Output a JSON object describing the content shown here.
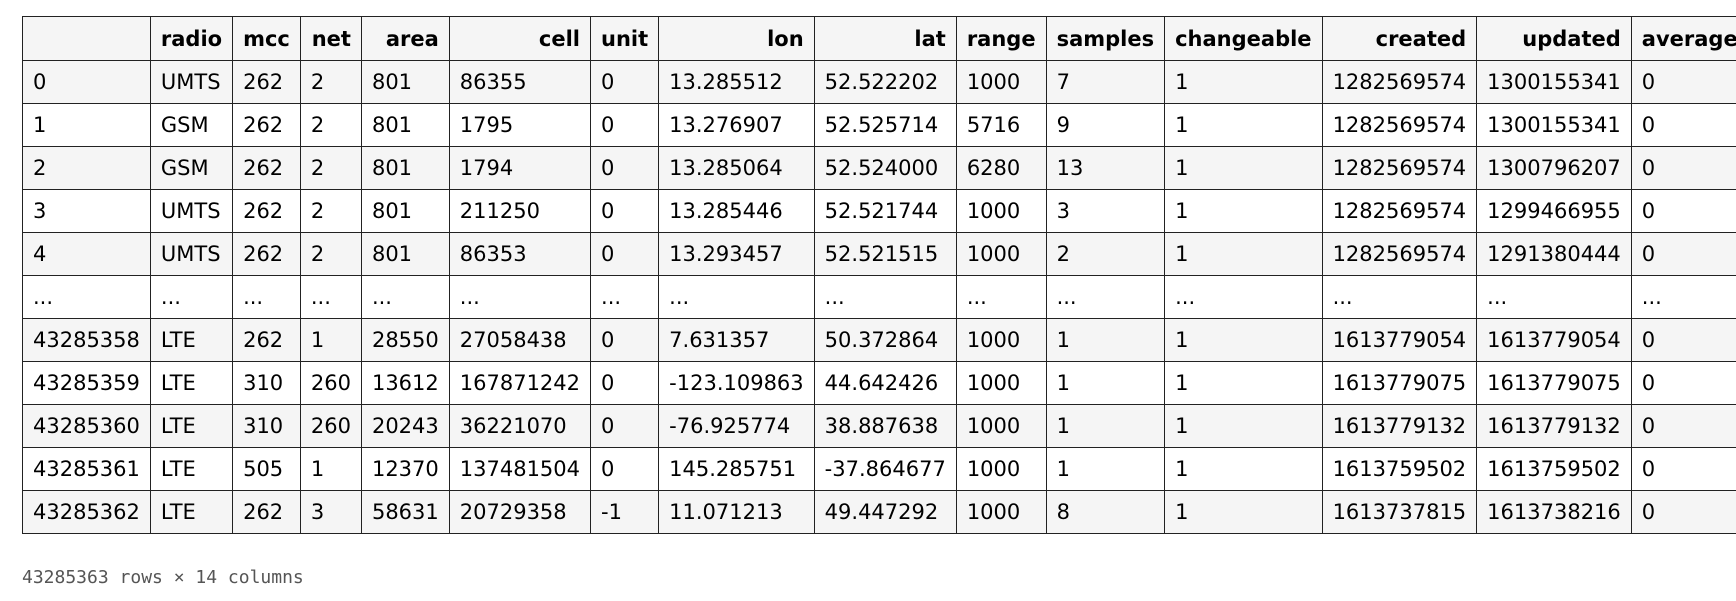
{
  "table": {
    "columns": [
      "",
      "radio",
      "mcc",
      "net",
      "area",
      "cell",
      "unit",
      "lon",
      "lat",
      "range",
      "samples",
      "changeable",
      "created",
      "updated",
      "averageSignal"
    ],
    "rows": [
      [
        "0",
        "UMTS",
        "262",
        "2",
        "801",
        "86355",
        "0",
        "13.285512",
        "52.522202",
        "1000",
        "7",
        "1",
        "1282569574",
        "1300155341",
        "0"
      ],
      [
        "1",
        "GSM",
        "262",
        "2",
        "801",
        "1795",
        "0",
        "13.276907",
        "52.525714",
        "5716",
        "9",
        "1",
        "1282569574",
        "1300155341",
        "0"
      ],
      [
        "2",
        "GSM",
        "262",
        "2",
        "801",
        "1794",
        "0",
        "13.285064",
        "52.524000",
        "6280",
        "13",
        "1",
        "1282569574",
        "1300796207",
        "0"
      ],
      [
        "3",
        "UMTS",
        "262",
        "2",
        "801",
        "211250",
        "0",
        "13.285446",
        "52.521744",
        "1000",
        "3",
        "1",
        "1282569574",
        "1299466955",
        "0"
      ],
      [
        "4",
        "UMTS",
        "262",
        "2",
        "801",
        "86353",
        "0",
        "13.293457",
        "52.521515",
        "1000",
        "2",
        "1",
        "1282569574",
        "1291380444",
        "0"
      ],
      [
        "...",
        "...",
        "...",
        "...",
        "...",
        "...",
        "...",
        "...",
        "...",
        "...",
        "...",
        "...",
        "...",
        "...",
        "..."
      ],
      [
        "43285358",
        "LTE",
        "262",
        "1",
        "28550",
        "27058438",
        "0",
        "7.631357",
        "50.372864",
        "1000",
        "1",
        "1",
        "1613779054",
        "1613779054",
        "0"
      ],
      [
        "43285359",
        "LTE",
        "310",
        "260",
        "13612",
        "167871242",
        "0",
        "-123.109863",
        "44.642426",
        "1000",
        "1",
        "1",
        "1613779075",
        "1613779075",
        "0"
      ],
      [
        "43285360",
        "LTE",
        "310",
        "260",
        "20243",
        "36221070",
        "0",
        "-76.925774",
        "38.887638",
        "1000",
        "1",
        "1",
        "1613779132",
        "1613779132",
        "0"
      ],
      [
        "43285361",
        "LTE",
        "505",
        "1",
        "12370",
        "137481504",
        "0",
        "145.285751",
        "-37.864677",
        "1000",
        "1",
        "1",
        "1613759502",
        "1613759502",
        "0"
      ],
      [
        "43285362",
        "LTE",
        "262",
        "3",
        "58631",
        "20729358",
        "-1",
        "11.071213",
        "49.447292",
        "1000",
        "8",
        "1",
        "1613737815",
        "1613738216",
        "0"
      ]
    ]
  },
  "footer": "43285363 rows × 14 columns"
}
